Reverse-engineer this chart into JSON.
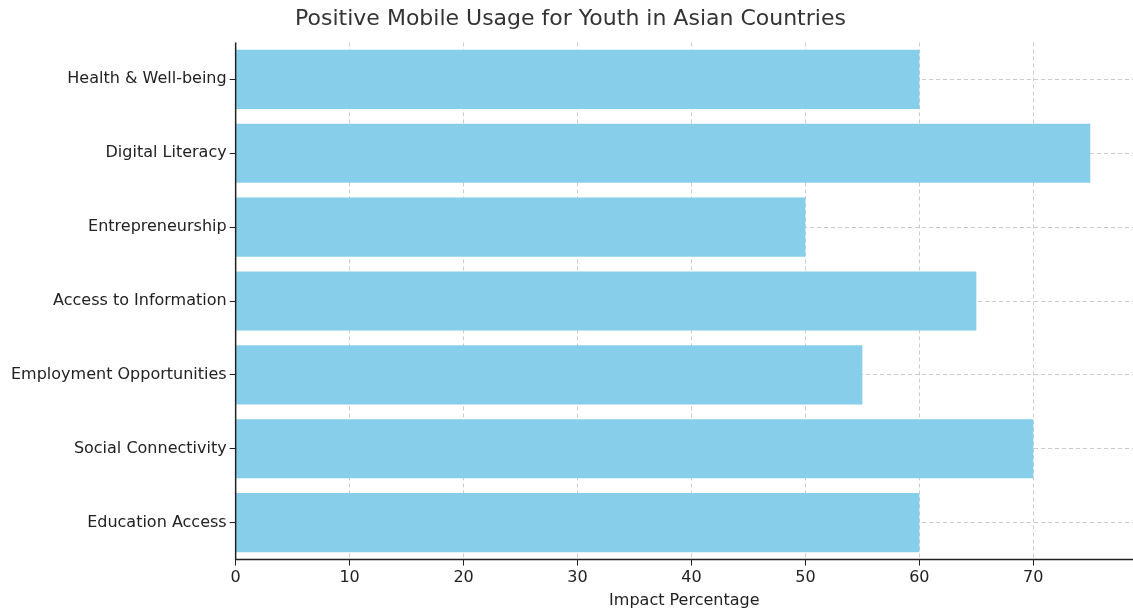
{
  "chart_data": {
    "type": "bar",
    "orientation": "horizontal",
    "title": "Positive Mobile Usage for Youth in Asian Countries",
    "xlabel": "Impact Percentage",
    "categories": [
      "Health & Well-being",
      "Digital Literacy",
      "Entrepreneurship",
      "Access to Information",
      "Employment Opportunities",
      "Social Connectivity",
      "Education Access"
    ],
    "values": [
      60,
      75,
      50,
      65,
      55,
      70,
      60
    ],
    "color": "#87ceeb",
    "xlim": [
      0,
      78.75
    ],
    "xticks": [
      0,
      10,
      20,
      30,
      40,
      50,
      60,
      70
    ],
    "grid": true
  }
}
